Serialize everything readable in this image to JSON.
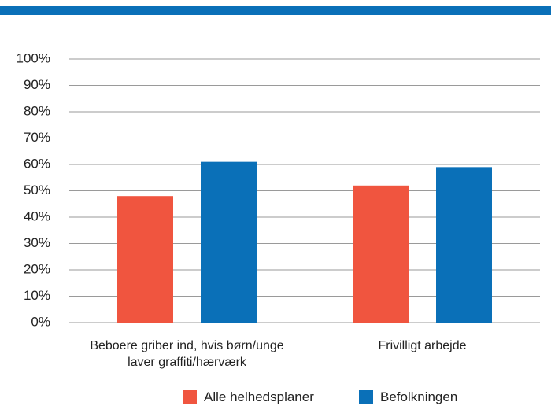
{
  "chart_data": {
    "type": "bar",
    "categories": [
      "Beboere griber ind, hvis børn/unge laver graffiti/hærværk",
      "Frivilligt arbejde"
    ],
    "series": [
      {
        "name": "Alle helhedsplaner",
        "color": "#f0553f",
        "values": [
          48,
          52
        ]
      },
      {
        "name": "Befolkningen",
        "color": "#0a70b8",
        "values": [
          61,
          59
        ]
      }
    ],
    "ylim": [
      0,
      100
    ],
    "yticks": [
      {
        "value": 0,
        "label": "0%"
      },
      {
        "value": 10,
        "label": "10%"
      },
      {
        "value": 20,
        "label": "20%"
      },
      {
        "value": 30,
        "label": "30%"
      },
      {
        "value": 40,
        "label": "40%"
      },
      {
        "value": 50,
        "label": "50%"
      },
      {
        "value": 60,
        "label": "60%"
      },
      {
        "value": 70,
        "label": "70%"
      },
      {
        "value": 80,
        "label": "80%"
      },
      {
        "value": 90,
        "label": "90%"
      },
      {
        "value": 100,
        "label": "100%"
      }
    ],
    "grid": true
  }
}
